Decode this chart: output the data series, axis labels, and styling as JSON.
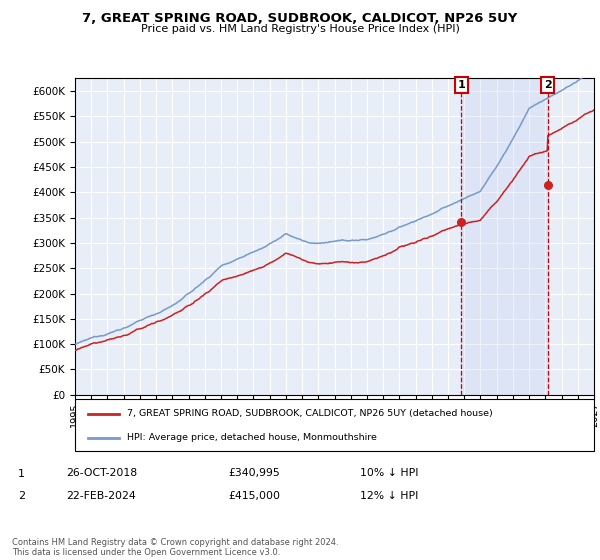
{
  "title": "7, GREAT SPRING ROAD, SUDBROOK, CALDICOT, NP26 5UY",
  "subtitle": "Price paid vs. HM Land Registry's House Price Index (HPI)",
  "background_color": "#ffffff",
  "plot_background": "#e8eef8",
  "grid_color": "#ffffff",
  "hpi_color": "#7799cc",
  "price_color": "#cc2222",
  "sale1_date": "26-OCT-2018",
  "sale1_price": 340995,
  "sale1_label": "10% ↓ HPI",
  "sale2_date": "22-FEB-2024",
  "sale2_price": 415000,
  "sale2_label": "12% ↓ HPI",
  "sale1_year": 2018.82,
  "sale2_year": 2024.14,
  "ylim": [
    0,
    625000
  ],
  "xlim_start": 1995,
  "xlim_end": 2027,
  "yticks": [
    0,
    50000,
    100000,
    150000,
    200000,
    250000,
    300000,
    350000,
    400000,
    450000,
    500000,
    550000,
    600000
  ],
  "legend_label_price": "7, GREAT SPRING ROAD, SUDBROOK, CALDICOT, NP26 5UY (detached house)",
  "legend_label_hpi": "HPI: Average price, detached house, Monmouthshire",
  "footer": "Contains HM Land Registry data © Crown copyright and database right 2024.\nThis data is licensed under the Open Government Licence v3.0."
}
